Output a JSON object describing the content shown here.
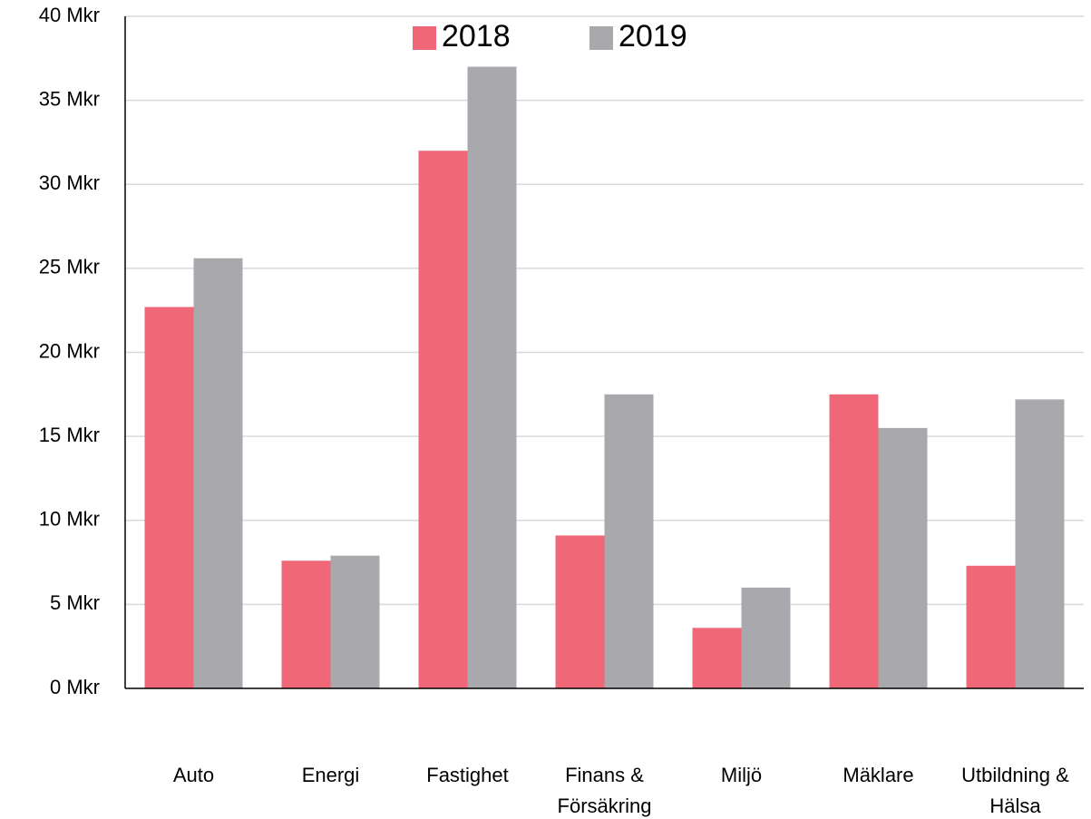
{
  "chart_data": {
    "type": "bar",
    "categories": [
      "Auto",
      "Energi",
      "Fastighet",
      "Finans & Försäkring",
      "Miljö",
      "Mäklare",
      "Utbildning & Hälsa"
    ],
    "series": [
      {
        "name": "2018",
        "color": "#f06878",
        "values": [
          22.7,
          7.6,
          32.0,
          9.1,
          3.6,
          17.5,
          7.3
        ]
      },
      {
        "name": "2019",
        "color": "#a9a9ad",
        "values": [
          25.6,
          7.9,
          37.0,
          17.5,
          6.0,
          15.5,
          17.2
        ]
      }
    ],
    "ylim": [
      0,
      40
    ],
    "yticks": [
      {
        "value": 0,
        "label": "0 Mkr"
      },
      {
        "value": 5,
        "label": "5 Mkr"
      },
      {
        "value": 10,
        "label": "10 Mkr"
      },
      {
        "value": 15,
        "label": "15 Mkr"
      },
      {
        "value": 20,
        "label": "20 Mkr"
      },
      {
        "value": 25,
        "label": "25 Mkr"
      },
      {
        "value": 30,
        "label": "30 Mkr"
      },
      {
        "value": 35,
        "label": "35 Mkr"
      },
      {
        "value": 40,
        "label": "40 Mkr"
      }
    ],
    "grid": true,
    "legend": "top"
  }
}
